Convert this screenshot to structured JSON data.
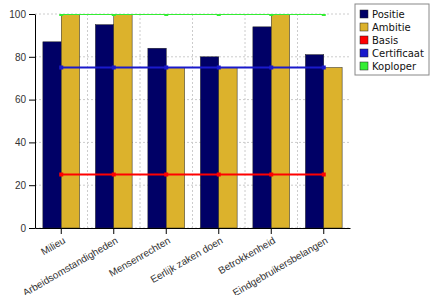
{
  "chart_data": {
    "type": "bar",
    "categories": [
      "Milieu",
      "Arbeidsomstandigheden",
      "Mensenrechten",
      "Eerlijk zaken doen",
      "Betrokkenheid",
      "Eindgebruikersbelangen"
    ],
    "series": [
      {
        "name": "Positie",
        "color": "#000066",
        "values": [
          87,
          95,
          84,
          80,
          94,
          81
        ]
      },
      {
        "name": "Ambitie",
        "color": "#dcb22c",
        "values": [
          100,
          100,
          75,
          75,
          100,
          75
        ]
      },
      {
        "name": "Basis",
        "color": "#ff0000",
        "type": "line",
        "marker": "square",
        "values": [
          25,
          25,
          25,
          25,
          25,
          25
        ]
      },
      {
        "name": "Certificaat",
        "color": "#1a1acc",
        "type": "line",
        "marker": "square",
        "values": [
          75,
          75,
          75,
          75,
          75,
          75
        ]
      },
      {
        "name": "Koploper",
        "color": "#33ee33",
        "type": "line",
        "marker": "square",
        "values": [
          100,
          100,
          100,
          100,
          100,
          100
        ]
      }
    ],
    "ylim": [
      0,
      100
    ],
    "yticks": [
      0,
      20,
      40,
      60,
      80,
      100
    ],
    "grid": true,
    "legend": "upper right"
  }
}
